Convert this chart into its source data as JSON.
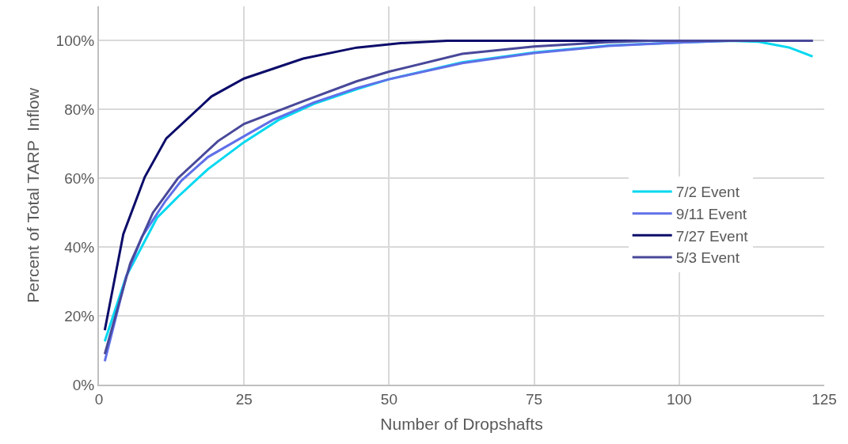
{
  "chart_data": {
    "type": "line",
    "xlabel": "Number of Dropshafts",
    "ylabel": "Percent of Total TARP  Inflow",
    "xlim": [
      0,
      125
    ],
    "xticks": [
      0,
      25,
      50,
      75,
      100,
      125
    ],
    "ylim": [
      0,
      110
    ],
    "yticks": [
      {
        "value": 0,
        "label": "0%"
      },
      {
        "value": 20,
        "label": "20%"
      },
      {
        "value": 40,
        "label": "40%"
      },
      {
        "value": 60,
        "label": "60%"
      },
      {
        "value": 80,
        "label": "80%"
      },
      {
        "value": 100,
        "label": "100%"
      }
    ],
    "grid": true,
    "legend": "bottom right",
    "marker": "none",
    "line_style": "solid",
    "series": [
      {
        "name": "7/2 Event",
        "color": "#00d8f0",
        "x": [
          1,
          4.7,
          10,
          13.6,
          18.8,
          25,
          31,
          37,
          44.4,
          50,
          62.6,
          75,
          87.8,
          100,
          108.7,
          113.7,
          119,
          123
        ],
        "values": [
          12.6,
          31.5,
          48.5,
          54.6,
          62.7,
          70.5,
          77,
          81.6,
          85.9,
          88.8,
          93.7,
          96.6,
          98.6,
          99.5,
          100,
          99.7,
          98,
          95.4
        ]
      },
      {
        "name": "9/11 Event",
        "color": "#6070e8",
        "x": [
          1,
          4.7,
          7.4,
          11.5,
          14.2,
          18.8,
          25.6,
          30,
          37,
          44.4,
          50,
          62.6,
          75,
          87.8,
          100,
          108.7,
          123
        ],
        "values": [
          6.8,
          31.5,
          43,
          53.5,
          59.3,
          66.2,
          72.8,
          77,
          82,
          86.2,
          88.8,
          93.5,
          96.4,
          98.5,
          99.5,
          100,
          100
        ]
      },
      {
        "name": "7/27 Event",
        "color": "#0c0c6a",
        "x": [
          1,
          4.2,
          7.9,
          11.6,
          19.4,
          25,
          35.2,
          44.4,
          52,
          60,
          123
        ],
        "values": [
          15.8,
          43.8,
          60.4,
          71.6,
          83.8,
          89,
          94.8,
          98,
          99.3,
          100,
          100
        ]
      },
      {
        "name": "5/3 Event",
        "color": "#48489a",
        "x": [
          1,
          5.4,
          9.3,
          13.6,
          20.5,
          25,
          35.2,
          44.4,
          50,
          62.6,
          75,
          87.8,
          95,
          123
        ],
        "values": [
          8.9,
          35.3,
          50,
          60,
          70.8,
          75.8,
          82.4,
          88.2,
          91,
          96.2,
          98.3,
          99.6,
          100,
          100
        ]
      }
    ]
  }
}
